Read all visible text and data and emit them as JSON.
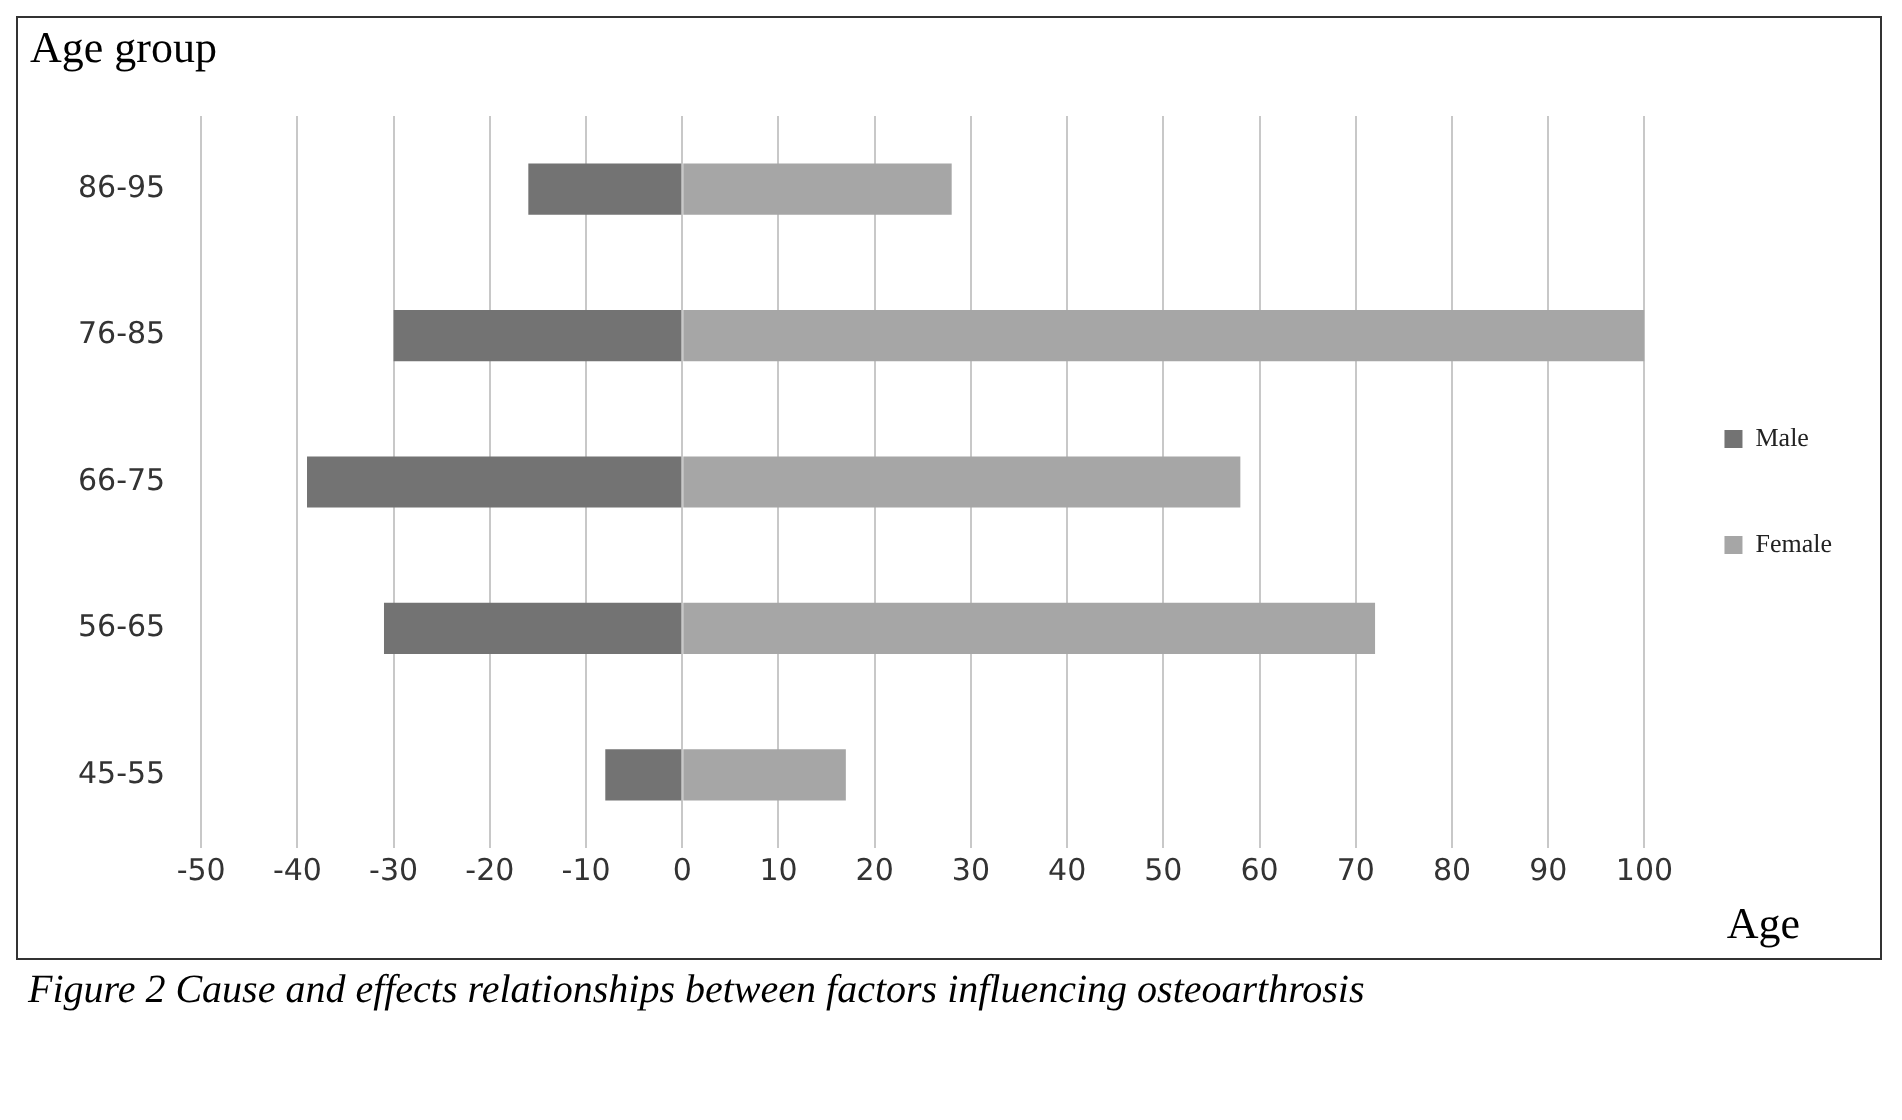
{
  "chart_data": {
    "type": "bar",
    "orientation": "horizontal",
    "stacked": true,
    "ylabel": "Age group",
    "xlabel": "Age",
    "categories": [
      "86-95",
      "76-85",
      "66-75",
      "56-65",
      "45-55"
    ],
    "series": [
      {
        "name": "Male",
        "color": "#737373",
        "values": [
          -16,
          -30,
          -39,
          -31,
          -8
        ]
      },
      {
        "name": "Female",
        "color": "#a6a6a6",
        "values": [
          28,
          100,
          58,
          72,
          17
        ]
      }
    ],
    "xlim": [
      -50,
      100
    ],
    "xticks": [
      -50,
      -40,
      -30,
      -20,
      -10,
      0,
      10,
      20,
      30,
      40,
      50,
      60,
      70,
      80,
      90,
      100
    ],
    "grid": "x",
    "legend": "right",
    "annotations": [
      "Figure 2 Cause and effects relationships between factors influencing osteoarthrosis"
    ]
  }
}
